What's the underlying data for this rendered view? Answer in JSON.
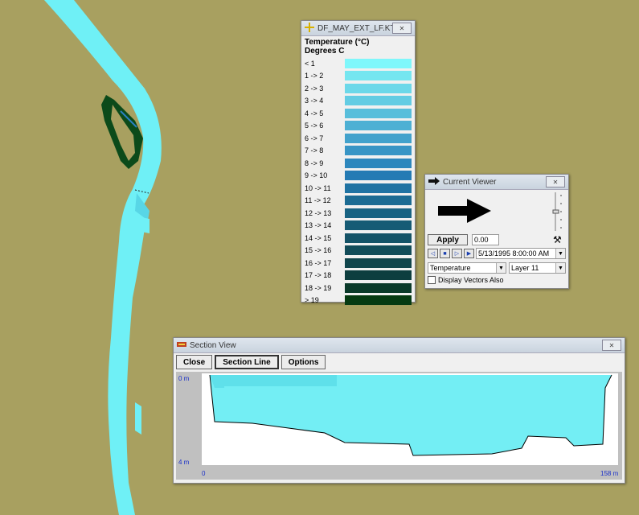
{
  "legend": {
    "title": "DF_MAY_EXT_LF.KTP",
    "variable": "Temperature (°C)",
    "units": "Degrees C",
    "entries": [
      {
        "label": "< 1",
        "color": "#7ff7fb"
      },
      {
        "label": "1 -> 2",
        "color": "#75e6f0"
      },
      {
        "label": "2 -> 3",
        "color": "#6cd8e9"
      },
      {
        "label": "3 -> 4",
        "color": "#63cce3"
      },
      {
        "label": "4 -> 5",
        "color": "#58bedb"
      },
      {
        "label": "5 -> 6",
        "color": "#4db0d4"
      },
      {
        "label": "6 -> 7",
        "color": "#42a2cc"
      },
      {
        "label": "7 -> 8",
        "color": "#3895c5"
      },
      {
        "label": "8 -> 9",
        "color": "#2d87bd"
      },
      {
        "label": "9 -> 10",
        "color": "#247bb4"
      },
      {
        "label": "10 -> 11",
        "color": "#1f73a3"
      },
      {
        "label": "11 -> 12",
        "color": "#1b6b93"
      },
      {
        "label": "12 -> 13",
        "color": "#186383"
      },
      {
        "label": "13 -> 14",
        "color": "#165b75"
      },
      {
        "label": "14 -> 15",
        "color": "#145367"
      },
      {
        "label": "15 -> 16",
        "color": "#124c59"
      },
      {
        "label": "16 -> 17",
        "color": "#10454c"
      },
      {
        "label": "17 -> 18",
        "color": "#0d3e3f"
      },
      {
        "label": "18 -> 19",
        "color": "#0a3a2a"
      },
      {
        "label": "> 19",
        "color": "#053a12"
      }
    ]
  },
  "viewer": {
    "title": "Current Viewer",
    "apply_label": "Apply",
    "apply_value": "0.00",
    "datetime": "5/13/1995 8:00:00 AM",
    "variable": "Temperature",
    "layer": "Layer 11",
    "vectors_label": "Display Vectors Also"
  },
  "section": {
    "title": "Section View",
    "close_label": "Close",
    "section_line_label": "Section Line",
    "options_label": "Options",
    "y_top": "0 m",
    "y_bottom": "4 m",
    "x_left": "0",
    "x_right": "158 m"
  },
  "colors": {
    "background": "#a8a060",
    "water": "#6ff0f6",
    "vegetation": "#0b4a1a"
  }
}
